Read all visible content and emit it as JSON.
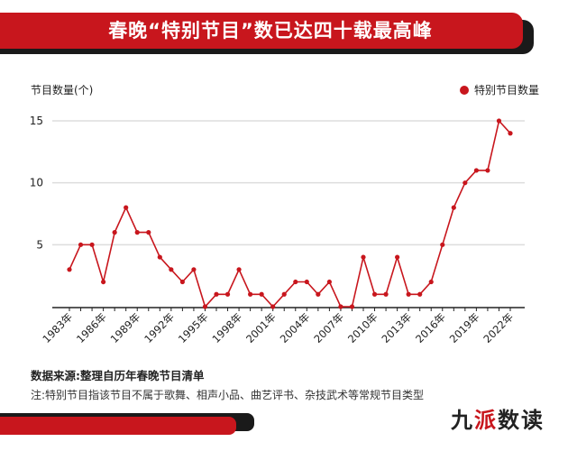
{
  "header": {
    "title": "春晚“特别节目”数已达四十载最高峰"
  },
  "colors": {
    "accent": "#c8161d",
    "dark": "#1a1a1a",
    "grid": "#dddddd"
  },
  "chart_data": {
    "type": "line",
    "title": "春晚“特别节目”数已达四十载最高峰",
    "ylabel": "节目数量(个)",
    "xlabel": "",
    "legend": "top-right",
    "grid": true,
    "ylim": [
      0,
      15
    ],
    "yticks": [
      "5",
      "10",
      "15"
    ],
    "xticks": [
      "1983年",
      "1986年",
      "1989年",
      "1992年",
      "1995年",
      "1998年",
      "2001年",
      "2004年",
      "2007年",
      "2010年",
      "2013年",
      "2016年",
      "2019年",
      "2022年"
    ],
    "series": [
      {
        "name": "特别节目数量",
        "x": [
          1983,
          1984,
          1985,
          1986,
          1987,
          1988,
          1989,
          1990,
          1991,
          1992,
          1993,
          1994,
          1995,
          1996,
          1997,
          1998,
          1999,
          2000,
          2001,
          2002,
          2003,
          2004,
          2005,
          2006,
          2007,
          2008,
          2009,
          2010,
          2011,
          2012,
          2013,
          2014,
          2015,
          2016,
          2017,
          2018,
          2019,
          2020,
          2021,
          2022
        ],
        "values": [
          3,
          5,
          5,
          2,
          6,
          8,
          6,
          6,
          4,
          3,
          2,
          3,
          0,
          1,
          1,
          3,
          1,
          1,
          0,
          1,
          2,
          2,
          1,
          2,
          0,
          0,
          4,
          1,
          1,
          4,
          1,
          1,
          2,
          5,
          8,
          10,
          11,
          11,
          15,
          14
        ]
      }
    ]
  },
  "footer": {
    "source": "数据来源:整理自历年春晚节目清单",
    "note": "注:特别节目指该节目不属于歌舞、相声小品、曲艺评书、杂技武术等常规节目类型",
    "brand_prefix": "九",
    "brand_accent": "派",
    "brand_suffix": "数读"
  }
}
